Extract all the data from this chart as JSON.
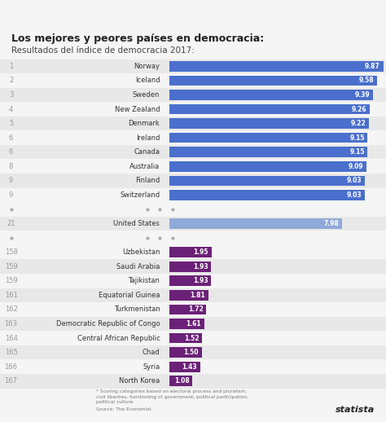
{
  "title": "Los mejores y peores países en democracia:",
  "subtitle": "Resultados del índice de democracia 2017:",
  "ranks": [
    "1",
    "2",
    "3",
    "4",
    "5",
    "6",
    "6",
    "8",
    "9",
    "9",
    "21",
    "158",
    "159",
    "159",
    "161",
    "162",
    "163",
    "164",
    "165",
    "166",
    "167"
  ],
  "countries": [
    "Norway",
    "Iceland",
    "Sweden",
    "New Zealand",
    "Denmark",
    "Ireland",
    "Canada",
    "Australia",
    "Finland",
    "Switzerland",
    "United States",
    "Uzbekistan",
    "Saudi Arabia",
    "Tajikistan",
    "Equatorial Guinea",
    "Turkmenistan",
    "Democratic Republic of Congo",
    "Central African Republic",
    "Chad",
    "Syria",
    "North Korea"
  ],
  "values": [
    9.87,
    9.58,
    9.39,
    9.26,
    9.22,
    9.15,
    9.15,
    9.09,
    9.03,
    9.03,
    7.98,
    1.95,
    1.93,
    1.93,
    1.81,
    1.72,
    1.61,
    1.52,
    1.5,
    1.43,
    1.08
  ],
  "bar_color_top": "#4a6fcc",
  "bar_color_us": "#8faad8",
  "bar_color_bottom": "#6b2177",
  "bg_color": "#f5f5f5",
  "row_alt_color": "#e8e8e8",
  "row_plain_color": "#f5f5f5",
  "text_color_rank": "#999999",
  "text_color_country": "#333333",
  "text_color_value": "#ffffff",
  "footnote_line1": "* Scoring categories based on electoral process and pluralism,",
  "footnote_line2": "civil liberties, functioning of government, political participation,",
  "footnote_line3": "political culture",
  "source_line": "Source: The Economist"
}
